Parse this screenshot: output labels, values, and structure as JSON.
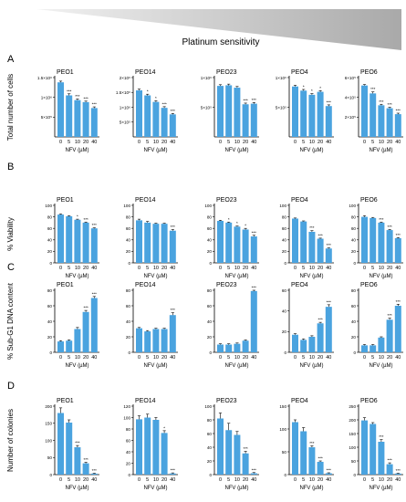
{
  "header": {
    "label": "Platinum sensitivity"
  },
  "colors": {
    "bar": "#4aa3df",
    "text": "#000000",
    "star": "#000000",
    "wedge_dark": "#a9a9a9",
    "wedge_light": "#f2f2f2"
  },
  "chart_data": [
    {
      "type": "bar",
      "panel": "A",
      "row_ylabel": "Total number of cells",
      "title": "PEO1",
      "categories": [
        "0",
        "5",
        "10",
        "20",
        "40"
      ],
      "xlabel": "NFV (µM)",
      "ylim": [
        0,
        1500000
      ],
      "ytick_labels": [
        "5×10⁵",
        "1×10⁶",
        "1.5×10⁶"
      ],
      "yticks": [
        500000,
        1000000,
        1500000
      ],
      "values": [
        1380000,
        1050000,
        930000,
        880000,
        730000
      ],
      "errors": [
        30000,
        40000,
        30000,
        25000,
        30000
      ],
      "sig": [
        "",
        "***",
        "***",
        "***",
        "***"
      ]
    },
    {
      "type": "bar",
      "panel": "A",
      "title": "PEO14",
      "categories": [
        "0",
        "5",
        "10",
        "20",
        "40"
      ],
      "xlabel": "NFV (µM)",
      "ylim": [
        0,
        2000000
      ],
      "ytick_labels": [
        "5×10⁵",
        "1×10⁶",
        "1.5×10⁶",
        "2×10⁶"
      ],
      "yticks": [
        500000,
        1000000,
        1500000,
        2000000
      ],
      "values": [
        1570000,
        1400000,
        1180000,
        980000,
        760000
      ],
      "errors": [
        40000,
        40000,
        40000,
        40000,
        30000
      ],
      "sig": [
        "",
        "*",
        "*",
        "***",
        "***"
      ]
    },
    {
      "type": "bar",
      "panel": "A",
      "title": "PEO23",
      "categories": [
        "0",
        "5",
        "10",
        "20",
        "40"
      ],
      "xlabel": "NFV (µM)",
      "ylim": [
        0,
        1000000
      ],
      "ytick_labels": [
        "5×10⁵",
        "1×10⁶"
      ],
      "yticks": [
        500000,
        1000000
      ],
      "values": [
        860000,
        870000,
        830000,
        550000,
        560000
      ],
      "errors": [
        20000,
        20000,
        20000,
        20000,
        20000
      ],
      "sig": [
        "",
        "",
        "",
        "***",
        "***"
      ]
    },
    {
      "type": "bar",
      "panel": "A",
      "title": "PEO4",
      "categories": [
        "0",
        "5",
        "10",
        "20",
        "40"
      ],
      "xlabel": "NFV (µM)",
      "ylim": [
        0,
        1000000
      ],
      "ytick_labels": [
        "5×10⁵",
        "1×10⁶"
      ],
      "yticks": [
        500000,
        1000000
      ],
      "values": [
        850000,
        780000,
        710000,
        760000,
        520000
      ],
      "errors": [
        20000,
        20000,
        20000,
        20000,
        20000
      ],
      "sig": [
        "",
        "*",
        "*",
        "*",
        "***"
      ]
    },
    {
      "type": "bar",
      "panel": "A",
      "title": "PEO6",
      "categories": [
        "0",
        "5",
        "10",
        "20",
        "40"
      ],
      "xlabel": "NFV (µM)",
      "ylim": [
        0,
        600000
      ],
      "ytick_labels": [
        "2×10⁵",
        "4×10⁵",
        "6×10⁵"
      ],
      "yticks": [
        200000,
        400000,
        600000
      ],
      "values": [
        520000,
        440000,
        320000,
        290000,
        230000
      ],
      "errors": [
        10000,
        15000,
        10000,
        10000,
        10000
      ],
      "sig": [
        "",
        "***",
        "***",
        "***",
        "***"
      ]
    },
    {
      "type": "bar",
      "panel": "B",
      "row_ylabel": "% Viability",
      "title": "PEO1",
      "categories": [
        "0",
        "5",
        "10",
        "20",
        "40"
      ],
      "xlabel": "NFV (µM)",
      "ylim": [
        0,
        100
      ],
      "ytick_labels": [
        "0",
        "20",
        "40",
        "60",
        "80",
        "100"
      ],
      "yticks": [
        0,
        20,
        40,
        60,
        80,
        100
      ],
      "values": [
        84,
        81,
        75,
        70,
        60
      ],
      "errors": [
        1,
        1,
        1,
        1,
        1
      ],
      "sig": [
        "",
        "",
        "*",
        "***",
        "***"
      ]
    },
    {
      "type": "bar",
      "panel": "B",
      "title": "PEO14",
      "categories": [
        "0",
        "5",
        "10",
        "20",
        "40"
      ],
      "xlabel": "NFV (µM)",
      "ylim": [
        0,
        100
      ],
      "ytick_labels": [
        "0",
        "20",
        "40",
        "60",
        "80",
        "100"
      ],
      "yticks": [
        0,
        20,
        40,
        60,
        80,
        100
      ],
      "values": [
        74,
        70,
        68,
        68,
        56
      ],
      "errors": [
        2,
        2,
        1,
        1,
        2
      ],
      "sig": [
        "",
        "",
        "",
        "",
        "***"
      ]
    },
    {
      "type": "bar",
      "panel": "B",
      "title": "PEO23",
      "categories": [
        "0",
        "5",
        "10",
        "20",
        "40"
      ],
      "xlabel": "NFV (µM)",
      "ylim": [
        0,
        100
      ],
      "ytick_labels": [
        "0",
        "20",
        "40",
        "60",
        "80",
        "100"
      ],
      "yticks": [
        0,
        20,
        40,
        60,
        80,
        100
      ],
      "values": [
        73,
        70,
        63,
        58,
        46
      ],
      "errors": [
        1,
        1,
        1,
        2,
        2
      ],
      "sig": [
        "",
        "*",
        "*",
        "*",
        "***"
      ]
    },
    {
      "type": "bar",
      "panel": "B",
      "title": "PEO4",
      "categories": [
        "0",
        "5",
        "10",
        "20",
        "40"
      ],
      "xlabel": "NFV (µM)",
      "ylim": [
        0,
        100
      ],
      "ytick_labels": [
        "0",
        "20",
        "40",
        "60",
        "80",
        "100"
      ],
      "yticks": [
        0,
        20,
        40,
        60,
        80,
        100
      ],
      "values": [
        77,
        72,
        54,
        42,
        25
      ],
      "errors": [
        1,
        1,
        2,
        1,
        1
      ],
      "sig": [
        "",
        "",
        "***",
        "***",
        "***"
      ]
    },
    {
      "type": "bar",
      "panel": "B",
      "title": "PEO6",
      "categories": [
        "0",
        "5",
        "10",
        "20",
        "40"
      ],
      "xlabel": "NFV (µM)",
      "ylim": [
        0,
        100
      ],
      "ytick_labels": [
        "0",
        "20",
        "40",
        "60",
        "80",
        "100"
      ],
      "yticks": [
        0,
        20,
        40,
        60,
        80,
        100
      ],
      "values": [
        80,
        78,
        70,
        57,
        43
      ],
      "errors": [
        2,
        1,
        1,
        1,
        1
      ],
      "sig": [
        "",
        "",
        "***",
        "***",
        "***"
      ]
    },
    {
      "type": "bar",
      "panel": "C",
      "row_ylabel": "% Sub-G1 DNA content",
      "title": "PEO1",
      "categories": [
        "0",
        "5",
        "10",
        "20",
        "40"
      ],
      "xlabel": "NFV (µM)",
      "ylim": [
        0,
        80
      ],
      "ytick_labels": [
        "0",
        "20",
        "40",
        "60",
        "80"
      ],
      "yticks": [
        0,
        20,
        40,
        60,
        80
      ],
      "values": [
        14,
        15,
        30,
        52,
        70
      ],
      "errors": [
        1,
        1,
        2,
        2,
        2
      ],
      "sig": [
        "",
        "",
        "",
        "***",
        "***"
      ]
    },
    {
      "type": "bar",
      "panel": "C",
      "title": "PEO14",
      "categories": [
        "0",
        "5",
        "10",
        "20",
        "40"
      ],
      "xlabel": "NFV (µM)",
      "ylim": [
        0,
        80
      ],
      "ytick_labels": [
        "0",
        "20",
        "40",
        "60",
        "80"
      ],
      "yticks": [
        0,
        20,
        40,
        60,
        80
      ],
      "values": [
        31,
        27,
        30,
        30,
        48
      ],
      "errors": [
        1,
        1,
        1,
        1,
        3
      ],
      "sig": [
        "",
        "",
        "",
        "",
        "***"
      ]
    },
    {
      "type": "bar",
      "panel": "C",
      "title": "PEO23",
      "categories": [
        "0",
        "5",
        "10",
        "20",
        "40"
      ],
      "xlabel": "NFV (µM)",
      "ylim": [
        0,
        80
      ],
      "ytick_labels": [
        "0",
        "20",
        "40",
        "60",
        "80"
      ],
      "yticks": [
        0,
        20,
        40,
        60,
        80
      ],
      "values": [
        10,
        10,
        11,
        15,
        79
      ],
      "errors": [
        1,
        1,
        1,
        1,
        1
      ],
      "sig": [
        "",
        "",
        "",
        "",
        "***"
      ]
    },
    {
      "type": "bar",
      "panel": "C",
      "title": "PEO4",
      "categories": [
        "0",
        "5",
        "10",
        "20",
        "40"
      ],
      "xlabel": "NFV (µM)",
      "ylim": [
        0,
        60
      ],
      "ytick_labels": [
        "0",
        "20",
        "40",
        "60"
      ],
      "yticks": [
        0,
        20,
        40,
        60
      ],
      "values": [
        17,
        12,
        15,
        28,
        44
      ],
      "errors": [
        1,
        1,
        1,
        1,
        2
      ],
      "sig": [
        "",
        "",
        "",
        "***",
        "***"
      ]
    },
    {
      "type": "bar",
      "panel": "C",
      "title": "PEO6",
      "categories": [
        "0",
        "5",
        "10",
        "20",
        "40"
      ],
      "xlabel": "NFV (µM)",
      "ylim": [
        0,
        80
      ],
      "ytick_labels": [
        "0",
        "20",
        "40",
        "60",
        "80"
      ],
      "yticks": [
        0,
        20,
        40,
        60,
        80
      ],
      "values": [
        9,
        9,
        19,
        42,
        60
      ],
      "errors": [
        1,
        1,
        1,
        2,
        2
      ],
      "sig": [
        "",
        "",
        "",
        "***",
        "***"
      ]
    },
    {
      "type": "bar",
      "panel": "D",
      "row_ylabel": "Number of colonies",
      "title": "PEO1",
      "categories": [
        "0",
        "5",
        "10",
        "20",
        "40"
      ],
      "xlabel": "NFV (µM)",
      "ylim": [
        0,
        200
      ],
      "ytick_labels": [
        "0",
        "50",
        "100",
        "150",
        "200"
      ],
      "yticks": [
        0,
        50,
        100,
        150,
        200
      ],
      "values": [
        180,
        152,
        80,
        33,
        3
      ],
      "errors": [
        15,
        8,
        5,
        3,
        1
      ],
      "sig": [
        "",
        "",
        "***",
        "***",
        "***"
      ]
    },
    {
      "type": "bar",
      "panel": "D",
      "title": "PEO14",
      "categories": [
        "0",
        "5",
        "10",
        "20",
        "40"
      ],
      "xlabel": "NFV (µM)",
      "ylim": [
        0,
        120
      ],
      "ytick_labels": [
        "0",
        "20",
        "40",
        "60",
        "80",
        "100",
        "120"
      ],
      "yticks": [
        0,
        20,
        40,
        60,
        80,
        100,
        120
      ],
      "values": [
        97,
        100,
        96,
        73,
        2
      ],
      "errors": [
        6,
        6,
        4,
        4,
        1
      ],
      "sig": [
        "",
        "",
        "",
        "*",
        "***"
      ]
    },
    {
      "type": "bar",
      "panel": "D",
      "title": "PEO23",
      "categories": [
        "0",
        "5",
        "10",
        "20",
        "40"
      ],
      "xlabel": "NFV (µM)",
      "ylim": [
        0,
        100
      ],
      "ytick_labels": [
        "0",
        "20",
        "40",
        "60",
        "80",
        "100"
      ],
      "yticks": [
        0,
        20,
        40,
        60,
        80,
        100
      ],
      "values": [
        82,
        65,
        58,
        31,
        2
      ],
      "errors": [
        8,
        10,
        5,
        3,
        1
      ],
      "sig": [
        "",
        "",
        "",
        "***",
        "***"
      ]
    },
    {
      "type": "bar",
      "panel": "D",
      "title": "PEO4",
      "categories": [
        "0",
        "5",
        "10",
        "20",
        "40"
      ],
      "xlabel": "NFV (µM)",
      "ylim": [
        0,
        150
      ],
      "ytick_labels": [
        "0",
        "50",
        "100",
        "150"
      ],
      "yticks": [
        0,
        50,
        100,
        150
      ],
      "values": [
        115,
        95,
        60,
        28,
        3
      ],
      "errors": [
        5,
        8,
        3,
        2,
        1
      ],
      "sig": [
        "",
        "",
        "***",
        "***",
        "***"
      ]
    },
    {
      "type": "bar",
      "panel": "D",
      "title": "PEO6",
      "categories": [
        "0",
        "5",
        "10",
        "20",
        "40"
      ],
      "xlabel": "NFV (µM)",
      "ylim": [
        0,
        250
      ],
      "ytick_labels": [
        "0",
        "50",
        "100",
        "150",
        "200",
        "250"
      ],
      "yticks": [
        0,
        50,
        100,
        150,
        200,
        250
      ],
      "values": [
        198,
        185,
        120,
        38,
        4
      ],
      "errors": [
        10,
        5,
        8,
        5,
        1
      ],
      "sig": [
        "",
        "",
        "***",
        "***",
        "***"
      ]
    }
  ]
}
